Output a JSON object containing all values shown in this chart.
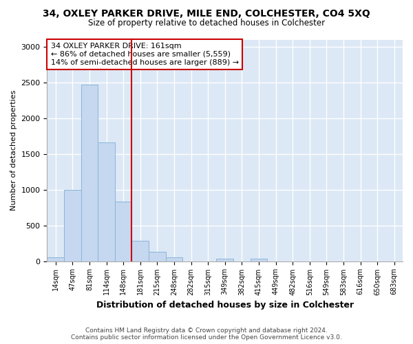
{
  "title": "34, OXLEY PARKER DRIVE, MILE END, COLCHESTER, CO4 5XQ",
  "subtitle": "Size of property relative to detached houses in Colchester",
  "xlabel": "Distribution of detached houses by size in Colchester",
  "ylabel": "Number of detached properties",
  "categories": [
    "14sqm",
    "47sqm",
    "81sqm",
    "114sqm",
    "148sqm",
    "181sqm",
    "215sqm",
    "248sqm",
    "282sqm",
    "315sqm",
    "349sqm",
    "382sqm",
    "415sqm",
    "449sqm",
    "482sqm",
    "516sqm",
    "549sqm",
    "583sqm",
    "616sqm",
    "650sqm",
    "683sqm"
  ],
  "values": [
    55,
    1000,
    2470,
    1660,
    830,
    280,
    130,
    55,
    0,
    0,
    35,
    0,
    30,
    0,
    0,
    0,
    0,
    0,
    0,
    0,
    0
  ],
  "bar_color": "#c5d8f0",
  "bar_edge_color": "#8ab4d8",
  "vline_color": "#cc0000",
  "annotation_title": "34 OXLEY PARKER DRIVE: 161sqm",
  "annotation_line1": "← 86% of detached houses are smaller (5,559)",
  "annotation_line2": "14% of semi-detached houses are larger (889) →",
  "annotation_box_color": "#ffffff",
  "annotation_box_edge_color": "#cc0000",
  "ylim": [
    0,
    3100
  ],
  "yticks": [
    0,
    500,
    1000,
    1500,
    2000,
    2500,
    3000
  ],
  "background_color": "#dce8f5",
  "plot_bg_color": "#dce8f5",
  "fig_bg_color": "#ffffff",
  "grid_color": "#ffffff",
  "footer_line1": "Contains HM Land Registry data © Crown copyright and database right 2024.",
  "footer_line2": "Contains public sector information licensed under the Open Government Licence v3.0.",
  "vline_position": 4.5
}
